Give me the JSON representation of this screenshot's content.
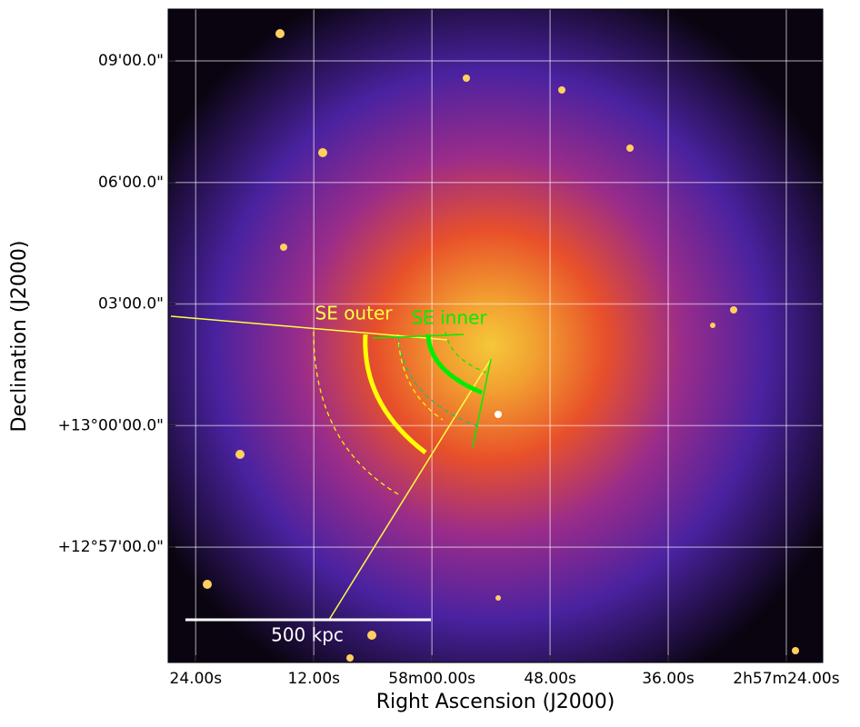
{
  "chart_data": {
    "type": "image",
    "x_label": "Right Ascension (J2000)",
    "y_label": "Declination (J2000)",
    "xlim": [
      10706.8,
      10640.3
    ],
    "xticks": [
      {
        "value": 10704,
        "label": "24.00s"
      },
      {
        "value": 10692,
        "label": "12.00s"
      },
      {
        "value": 10680,
        "label": "58m00.00s"
      },
      {
        "value": 10668,
        "label": "48.00s"
      },
      {
        "value": 10656,
        "label": "36.00s"
      },
      {
        "value": 10644,
        "label": "2h57m24.00s"
      }
    ],
    "ylim": [
      46449.4,
      47416.6
    ],
    "yticks": [
      {
        "value": 47340,
        "label": "09'00.0\""
      },
      {
        "value": 47160,
        "label": "06'00.0\""
      },
      {
        "value": 46980,
        "label": "03'00.0\""
      },
      {
        "value": 46800,
        "label": "+13°00'00.0\""
      },
      {
        "value": 46620,
        "label": "+12°57'00.0\""
      }
    ],
    "grid": true,
    "annotations": [
      "SE outer",
      "SE inner",
      "500 kpc"
    ]
  }
}
